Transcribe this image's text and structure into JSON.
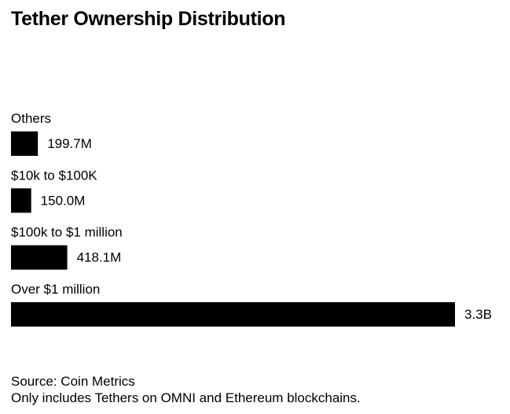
{
  "chart_data": {
    "type": "bar",
    "orientation": "horizontal",
    "title": "Tether Ownership Distribution",
    "categories": [
      "Others",
      "$10k to $100K",
      "$100k to $1 million",
      "Over $1 million"
    ],
    "values": [
      199.7,
      150.0,
      418.1,
      3300
    ],
    "value_labels": [
      "199.7M",
      "150.0M",
      "418.1M",
      "3.3B"
    ],
    "unit": "USD millions",
    "bar_color": "#000000",
    "xlim": [
      0,
      3300
    ],
    "grid": false
  },
  "footer": {
    "source": "Source: Coin Metrics",
    "note": "Only includes Tethers on OMNI and Ethereum blockchains."
  }
}
